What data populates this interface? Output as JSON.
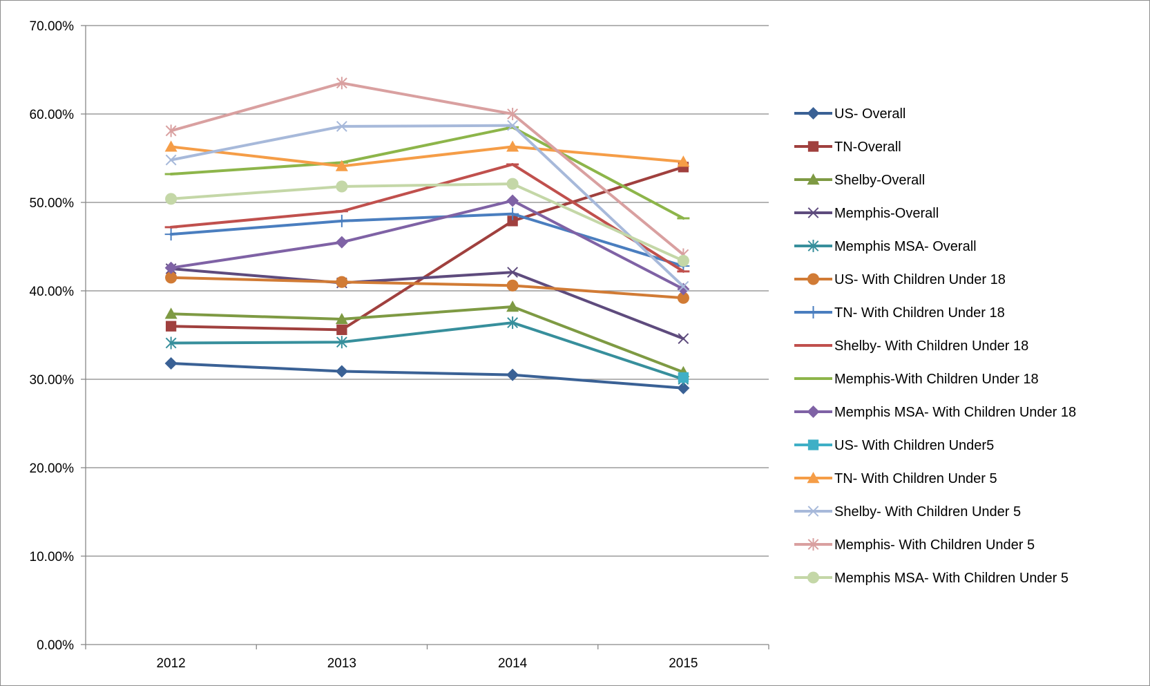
{
  "chart_data": {
    "type": "line",
    "title": "",
    "xlabel": "",
    "ylabel": "",
    "categories": [
      "2012",
      "2013",
      "2014",
      "2015"
    ],
    "y_axis": {
      "min": 0,
      "max": 0.7,
      "ticks": [
        0,
        0.1,
        0.2,
        0.3,
        0.4,
        0.5,
        0.6,
        0.7
      ],
      "tick_labels": [
        "0.00%",
        "10.00%",
        "20.00%",
        "30.00%",
        "40.00%",
        "50.00%",
        "60.00%",
        "70.00%"
      ],
      "format": "percent"
    },
    "grid": "horizontal",
    "legend_position": "right",
    "series": [
      {
        "name": "US- Overall",
        "values": [
          0.318,
          0.309,
          0.305,
          0.29
        ],
        "color": "#3A6195",
        "marker": "diamond"
      },
      {
        "name": "TN-Overall",
        "values": [
          0.36,
          0.356,
          0.479,
          0.54
        ],
        "color": "#A0403E",
        "marker": "square"
      },
      {
        "name": "Shelby-Overall",
        "values": [
          0.374,
          0.368,
          0.382,
          0.308
        ],
        "color": "#7E9A43",
        "marker": "triangle"
      },
      {
        "name": "Memphis-Overall",
        "values": [
          0.425,
          0.409,
          0.421,
          0.346
        ],
        "color": "#5E4B7D",
        "marker": "x"
      },
      {
        "name": "Memphis MSA- Overall",
        "values": [
          0.341,
          0.342,
          0.364,
          0.3
        ],
        "color": "#378F9C",
        "marker": "star"
      },
      {
        "name": "US- With Children Under 18",
        "values": [
          0.415,
          0.41,
          0.406,
          0.392
        ],
        "color": "#D17B35",
        "marker": "circle"
      },
      {
        "name": "TN- With Children Under 18",
        "values": [
          0.464,
          0.479,
          0.487,
          0.428
        ],
        "color": "#4A7EBF",
        "marker": "plus"
      },
      {
        "name": "Shelby- With Children Under 18",
        "values": [
          0.472,
          0.49,
          0.543,
          0.422
        ],
        "color": "#C0504D",
        "marker": "dash"
      },
      {
        "name": "Memphis-With Children Under 18",
        "values": [
          0.532,
          0.545,
          0.585,
          0.482
        ],
        "color": "#8DB54A",
        "marker": "dash"
      },
      {
        "name": "Memphis MSA- With Children Under 18",
        "values": [
          0.426,
          0.455,
          0.502,
          0.402
        ],
        "color": "#7F62A5",
        "marker": "diamond"
      },
      {
        "name": "US- With Children Under5",
        "values": [
          null,
          null,
          null,
          0.302
        ],
        "color": "#3FAFC6",
        "marker": "square"
      },
      {
        "name": "TN- With Children Under 5",
        "values": [
          0.563,
          0.541,
          0.563,
          0.546
        ],
        "color": "#F59D47",
        "marker": "triangle"
      },
      {
        "name": "Shelby- With Children Under 5",
        "values": [
          0.548,
          0.586,
          0.587,
          0.405
        ],
        "color": "#A7B9DA",
        "marker": "x"
      },
      {
        "name": "Memphis- With Children Under 5",
        "values": [
          0.581,
          0.635,
          0.6,
          0.441
        ],
        "color": "#D9A0A0",
        "marker": "star"
      },
      {
        "name": "Memphis MSA- With Children Under 5",
        "values": [
          0.504,
          0.518,
          0.521,
          0.434
        ],
        "color": "#C4D7A7",
        "marker": "circle"
      }
    ]
  }
}
